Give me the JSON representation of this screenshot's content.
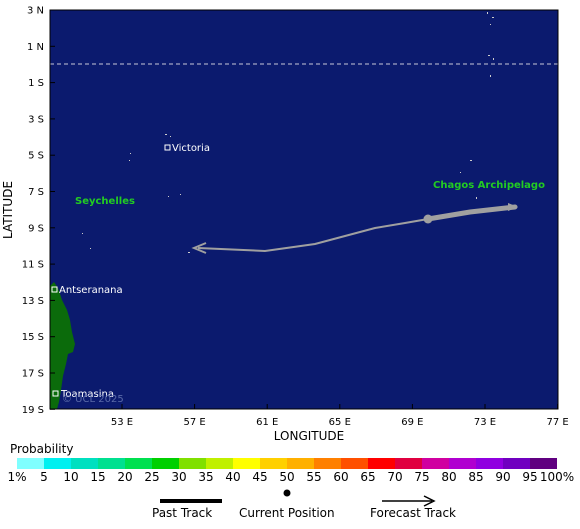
{
  "map": {
    "lat_ticks": [
      "3 N",
      "1 N",
      "1 S",
      "3 S",
      "5 S",
      "7 S",
      "9 S",
      "11 S",
      "13 S",
      "15 S",
      "17 S",
      "19 S"
    ],
    "lon_ticks": [
      "53 E",
      "57 E",
      "61 E",
      "65 E",
      "69 E",
      "73 E",
      "77 E"
    ],
    "xlabel": "LONGITUDE",
    "ylabel": "LATITUDE",
    "places": {
      "victoria": "Victoria",
      "antseranana": "Antseranana",
      "toamasina": "Toamasina"
    },
    "regions": {
      "seychelles": "Seychelles",
      "chagos": "Chagos Archipelago"
    },
    "copyright": "© UCL 2025",
    "colors": {
      "ocean": "#0b1a6e",
      "land": "#0b6b0b",
      "region_label": "#22cc22",
      "track": "#a0a0a0"
    }
  },
  "legend": {
    "title": "Probability",
    "tick_labels": [
      "1%",
      "5",
      "10",
      "15",
      "20",
      "25",
      "30",
      "35",
      "40",
      "45",
      "50",
      "55",
      "60",
      "65",
      "70",
      "75",
      "80",
      "85",
      "90",
      "95",
      "100%"
    ],
    "colors": [
      "#80ffff",
      "#00f0f0",
      "#00e0c0",
      "#00e090",
      "#00e050",
      "#00d000",
      "#80e000",
      "#c0f000",
      "#ffff00",
      "#ffd000",
      "#ffb000",
      "#ff8000",
      "#ff5000",
      "#ff0000",
      "#e00040",
      "#d000a0",
      "#b000d0",
      "#9000e0",
      "#7000c0",
      "#600080"
    ],
    "past_track": "Past Track",
    "current_position": "Current Position",
    "forecast_track": "Forecast Track"
  }
}
